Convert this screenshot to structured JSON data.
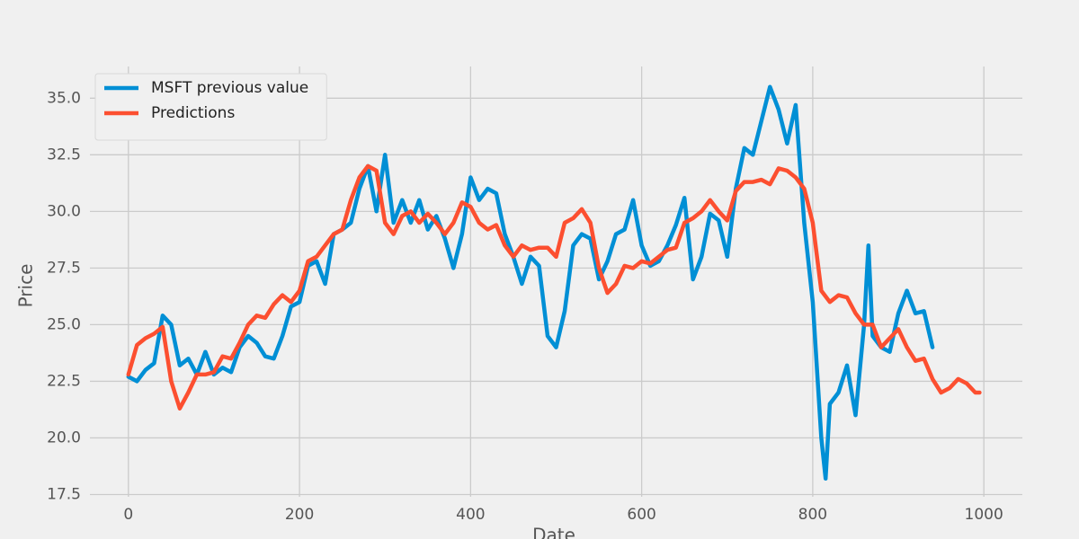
{
  "chart_data": {
    "type": "line",
    "xlabel": "Date",
    "ylabel": "Price",
    "xlim": [
      -45,
      1045
    ],
    "ylim": [
      17.4,
      36.4
    ],
    "xticks": [
      0,
      200,
      400,
      600,
      800,
      1000
    ],
    "yticks": [
      17.5,
      {
        "value": 20,
        "label": "20.0"
      },
      22.5,
      {
        "value": 25,
        "label": "25.0"
      },
      27.5,
      {
        "value": 30,
        "label": "30.0"
      },
      32.5,
      {
        "value": 35,
        "label": "35.0"
      }
    ],
    "grid": true,
    "legend": "upper left",
    "series": [
      {
        "name": "MSFT previous value",
        "color": "#008fd5",
        "x": [
          0,
          10,
          20,
          30,
          40,
          50,
          60,
          70,
          80,
          90,
          100,
          110,
          120,
          130,
          140,
          150,
          160,
          170,
          180,
          190,
          200,
          210,
          220,
          230,
          240,
          250,
          260,
          270,
          280,
          290,
          300,
          310,
          320,
          330,
          340,
          350,
          360,
          370,
          380,
          390,
          400,
          410,
          420,
          430,
          440,
          450,
          460,
          470,
          480,
          490,
          500,
          510,
          520,
          530,
          540,
          550,
          560,
          570,
          580,
          590,
          600,
          610,
          620,
          630,
          640,
          650,
          660,
          670,
          680,
          690,
          700,
          710,
          720,
          730,
          740,
          750,
          760,
          770,
          780,
          790,
          800,
          810,
          815,
          820,
          830,
          840,
          850,
          860,
          865,
          870,
          880,
          890,
          900,
          910,
          920,
          930,
          940
        ],
        "values": [
          22.7,
          22.5,
          23.0,
          23.3,
          25.4,
          25.0,
          23.2,
          23.5,
          22.8,
          23.8,
          22.8,
          23.1,
          22.9,
          24.0,
          24.5,
          24.2,
          23.6,
          23.5,
          24.5,
          25.8,
          26.0,
          27.6,
          27.8,
          26.8,
          29.0,
          29.2,
          29.5,
          31.0,
          32.0,
          30.0,
          32.5,
          29.5,
          30.5,
          29.5,
          30.5,
          29.2,
          29.8,
          28.8,
          27.5,
          29.0,
          31.5,
          30.5,
          31.0,
          30.8,
          29.0,
          28.0,
          26.8,
          28.0,
          27.6,
          24.5,
          24.0,
          25.6,
          28.5,
          29.0,
          28.8,
          27.0,
          27.8,
          29.0,
          29.2,
          30.5,
          28.5,
          27.6,
          27.8,
          28.5,
          29.4,
          30.6,
          27.0,
          28.0,
          29.9,
          29.6,
          28.0,
          31.0,
          32.8,
          32.5,
          34.0,
          35.5,
          34.5,
          33.0,
          34.7,
          29.5,
          26.0,
          20.0,
          18.2,
          21.5,
          22.0,
          23.2,
          21.0,
          25.0,
          28.5,
          24.5,
          24.0,
          23.8,
          25.5,
          26.5,
          25.5,
          25.6,
          24.0
        ]
      },
      {
        "name": "Predictions",
        "color": "#fc4f30",
        "x": [
          0,
          10,
          20,
          30,
          40,
          50,
          60,
          70,
          80,
          90,
          100,
          110,
          120,
          130,
          140,
          150,
          160,
          170,
          180,
          190,
          200,
          210,
          220,
          230,
          240,
          250,
          260,
          270,
          280,
          290,
          300,
          310,
          320,
          330,
          340,
          350,
          360,
          370,
          380,
          390,
          400,
          410,
          420,
          430,
          440,
          450,
          460,
          470,
          480,
          490,
          500,
          510,
          520,
          530,
          540,
          550,
          560,
          570,
          580,
          590,
          600,
          610,
          620,
          630,
          640,
          650,
          660,
          670,
          680,
          690,
          700,
          710,
          720,
          730,
          740,
          750,
          760,
          770,
          780,
          790,
          800,
          810,
          820,
          830,
          840,
          850,
          860,
          870,
          880,
          890,
          900,
          910,
          920,
          930,
          940,
          950,
          960,
          970,
          980,
          990,
          995
        ],
        "values": [
          22.8,
          24.1,
          24.4,
          24.6,
          24.9,
          22.5,
          21.3,
          22.0,
          22.8,
          22.8,
          22.9,
          23.6,
          23.5,
          24.2,
          25.0,
          25.4,
          25.3,
          25.9,
          26.3,
          26.0,
          26.5,
          27.8,
          28.0,
          28.5,
          29.0,
          29.2,
          30.5,
          31.5,
          32.0,
          31.8,
          29.5,
          29.0,
          29.8,
          30.0,
          29.5,
          29.9,
          29.5,
          29.0,
          29.5,
          30.4,
          30.2,
          29.5,
          29.2,
          29.4,
          28.5,
          28.0,
          28.5,
          28.3,
          28.4,
          28.4,
          28.0,
          29.5,
          29.7,
          30.1,
          29.5,
          27.5,
          26.4,
          26.8,
          27.6,
          27.5,
          27.8,
          27.7,
          28.0,
          28.3,
          28.4,
          29.5,
          29.7,
          30.0,
          30.5,
          30.0,
          29.6,
          30.9,
          31.3,
          31.3,
          31.4,
          31.2,
          31.9,
          31.8,
          31.5,
          31.0,
          29.5,
          26.5,
          26.0,
          26.3,
          26.2,
          25.5,
          25.0,
          25.0,
          24.0,
          24.4,
          24.8,
          24.0,
          23.4,
          23.5,
          22.6,
          22.0,
          22.2,
          22.6,
          22.4,
          22.0,
          22.0
        ]
      }
    ]
  }
}
